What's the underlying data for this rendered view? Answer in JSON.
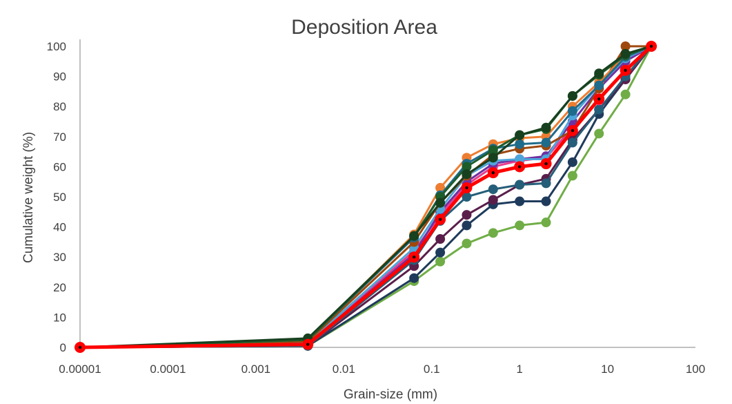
{
  "chart_data": {
    "type": "line",
    "title": "Deposition Area",
    "xlabel": "Grain-size (mm)",
    "ylabel": "Cumulative weight (%)",
    "xscale": "log",
    "xlim": [
      1e-05,
      100
    ],
    "ylim": [
      0,
      100
    ],
    "x_tick_labels": [
      "0.00001",
      "0.0001",
      "0.001",
      "0.01",
      "0.1",
      "1",
      "10",
      "100"
    ],
    "y_tick_labels": [
      "0",
      "10",
      "20",
      "30",
      "40",
      "50",
      "60",
      "70",
      "80",
      "90",
      "100"
    ],
    "grid": false,
    "legend": "none",
    "x": [
      1e-05,
      0.0039,
      0.063,
      0.125,
      0.25,
      0.5,
      1,
      2,
      4,
      8,
      16,
      31.5
    ],
    "series": [
      {
        "color": "#70ad47",
        "values": [
          0,
          0.5,
          22.0,
          28.5,
          34.5,
          38.0,
          40.5,
          41.5,
          57.0,
          71.0,
          84.0,
          100
        ]
      },
      {
        "color": "#1f3b5c",
        "values": [
          0,
          0.5,
          23.0,
          31.5,
          40.5,
          47.5,
          48.5,
          48.5,
          61.5,
          77.5,
          89.0,
          100
        ]
      },
      {
        "color": "#5a1e4b",
        "values": [
          0,
          0.5,
          27.0,
          36.0,
          44.0,
          49.0,
          54.0,
          56.0,
          69.0,
          79.0,
          89.0,
          100
        ]
      },
      {
        "color": "#255e79",
        "values": [
          0,
          0.5,
          29.0,
          42.0,
          50.0,
          52.5,
          54.0,
          54.5,
          68.0,
          79.0,
          90.0,
          100
        ]
      },
      {
        "color": "#e83c8b",
        "values": [
          0,
          1.0,
          32.0,
          44.0,
          54.0,
          60.0,
          62.0,
          63.0,
          73.0,
          82.0,
          92.0,
          100
        ]
      },
      {
        "color": "#7030a0",
        "values": [
          0,
          1.0,
          31.0,
          45.0,
          55.0,
          61.0,
          62.5,
          63.5,
          75.0,
          86.0,
          95.0,
          100
        ]
      },
      {
        "color": "#4ea5d9",
        "values": [
          0,
          1.5,
          33.0,
          46.0,
          57.0,
          62.0,
          62.5,
          62.5,
          77.0,
          87.0,
          96.0,
          100
        ]
      },
      {
        "color": "#9e480e",
        "values": [
          0,
          2.0,
          35.0,
          48.0,
          57.0,
          64.0,
          66.0,
          67.0,
          72.0,
          86.0,
          100,
          100
        ]
      },
      {
        "color": "#ed7d31",
        "values": [
          0,
          2.5,
          37.5,
          53.0,
          63.0,
          67.5,
          69.5,
          70.0,
          80.0,
          88.0,
          97.0,
          100
        ]
      },
      {
        "color": "#1f6b8b",
        "values": [
          0,
          2.5,
          36.5,
          50.5,
          61.0,
          66.0,
          67.5,
          68.0,
          78.5,
          87.0,
          96.5,
          100
        ]
      },
      {
        "color": "#1e5c2a",
        "values": [
          0,
          2.5,
          37.0,
          50.0,
          60.0,
          65.5,
          70.5,
          72.5,
          83.5,
          90.5,
          97.0,
          100
        ]
      },
      {
        "color": "#17401f",
        "values": [
          0,
          3.0,
          37.0,
          48.0,
          57.5,
          63.0,
          70.5,
          73.0,
          83.5,
          91.0,
          97.5,
          100
        ]
      },
      {
        "color": "#ff0000",
        "values": [
          0,
          1.0,
          30.0,
          42.5,
          53.0,
          58.0,
          60.0,
          61.0,
          72.0,
          82.5,
          92.0,
          100
        ],
        "highlight": true
      }
    ]
  }
}
